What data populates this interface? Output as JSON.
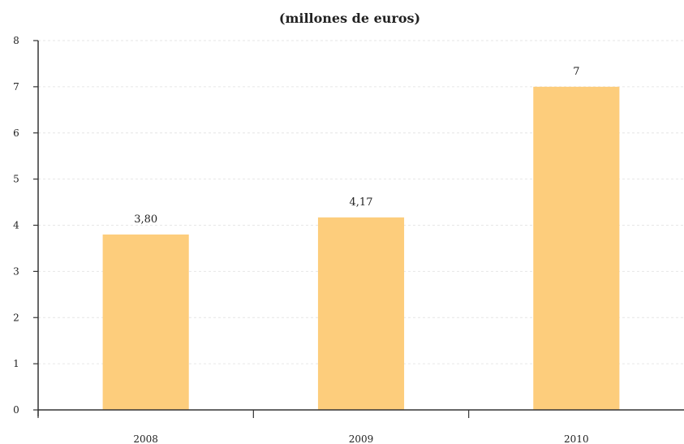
{
  "chart_data": {
    "type": "bar",
    "title": "(millones de euros)",
    "xlabel": "",
    "ylabel": "",
    "categories": [
      "2008",
      "2009",
      "2010"
    ],
    "values": [
      3.8,
      4.17,
      7
    ],
    "value_labels": [
      "3,80",
      "4,17",
      "7"
    ],
    "ylim": [
      0,
      8
    ],
    "yticks": [
      "0",
      "1",
      "2",
      "3",
      "4",
      "5",
      "6",
      "7",
      "8"
    ],
    "grid": true,
    "bar_color": "#fdcd7c"
  }
}
